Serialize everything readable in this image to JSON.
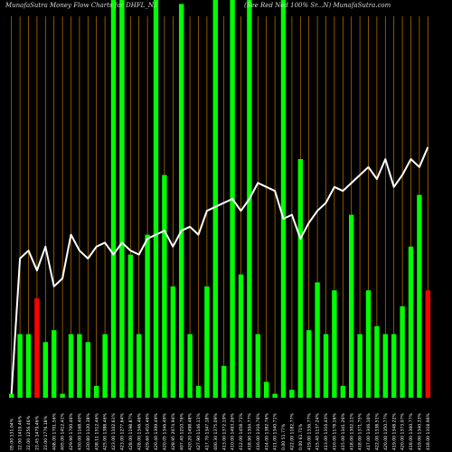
{
  "header": {
    "left": "MunafaSutra  Money Flow  Charts for DHFL_N1",
    "right": "(See Red Ned 100% Sr...N) MunafaSutra.com"
  },
  "colors": {
    "background": "#000000",
    "up": "#00ff00",
    "down": "#ff0000",
    "grid": "#c87800",
    "line": "#ffffff"
  },
  "chart_data": {
    "type": "bar",
    "title": "MunafaSutra  Money Flow  Charts for DHFL_N1",
    "subtitle": "(See Red Ned 100% Sr...N) MunafaSutra.com",
    "ylim": [
      0,
      100
    ],
    "grid": true,
    "categories": [
      "05.00 131.04%",
      "22.00 1419.46%",
      "22.00 1256.46%",
      "23.45 1479.46%",
      "23.00 1776.18%",
      "408.00 1701.56%",
      "405.00 1412.41%",
      "429.90 1700.46%",
      "430.00 1168.40%",
      "430.80 1120.38%",
      "438.11 1512.46%",
      "425.00 1388.46%",
      "423.00 1102.61%",
      "423.00 1277.64%",
      "428.00 1198.87%",
      "428.00 1346.46%",
      "429.60 1410.46%",
      "420.40 1309.49%",
      "420.05 1346.49%",
      "428.95 2074.94%",
      "407.40 1210.76%",
      "420.20 1498.48%",
      "427.90 1146.11%",
      "417.70 1347.18%",
      "400.30 1375.09%",
      "413.00 1372.19%",
      "410.00 1493.26%",
      "412.00 1458.71%",
      "418.90 1304.77%",
      "416.00 1316.76%",
      "414.00 1382.76%",
      "411.00 1340.71%",
      "0.00 51.77%",
      "422.00 1182.77%",
      "0.00 61.71%",
      "419.00 1336.77%",
      "415.40 1137.24%",
      "413.00 1316.43%",
      "410.00 1178.16%",
      "415.00 1341.26%",
      "418.00 1302.11%",
      "418.00 1371.75%",
      "417.00 1346.16%",
      "422.00 1338.51%",
      "420.00 1350.77%",
      "419.00 1348.22%",
      "420.00 1373.07%",
      "418.00 1360.77%",
      "419.00 1340.33%",
      "418.00 1318.96%"
    ],
    "series": [
      {
        "values": [
          1,
          16,
          16,
          25,
          14,
          17,
          1,
          16,
          16,
          14,
          3,
          16,
          100,
          100,
          36,
          16,
          41,
          100,
          56,
          28,
          99,
          16,
          3,
          28,
          100,
          8,
          100,
          31,
          100,
          16,
          4,
          1,
          100,
          2,
          60,
          17,
          29,
          16,
          27,
          3,
          46,
          16,
          27,
          18,
          16,
          16,
          23,
          38,
          51,
          27
        ],
        "directions": [
          "up",
          "up",
          "up",
          "down",
          "up",
          "up",
          "up",
          "up",
          "up",
          "up",
          "up",
          "up",
          "up",
          "up",
          "up",
          "up",
          "up",
          "up",
          "up",
          "up",
          "up",
          "up",
          "up",
          "up",
          "up",
          "up",
          "up",
          "up",
          "up",
          "up",
          "up",
          "up",
          "up",
          "up",
          "up",
          "up",
          "up",
          "up",
          "up",
          "up",
          "up",
          "up",
          "up",
          "up",
          "up",
          "up",
          "up",
          "up",
          "up",
          "down"
        ]
      }
    ],
    "line_values": [
      1,
      35,
      37,
      32,
      38,
      28,
      30,
      41,
      37,
      35,
      38,
      39,
      36,
      39,
      37,
      36,
      40,
      41,
      42,
      38,
      42,
      43,
      41,
      47,
      48,
      49,
      50,
      47,
      50,
      54,
      53,
      52,
      45,
      46,
      40,
      44,
      47,
      49,
      53,
      52,
      54,
      56,
      58,
      55,
      60,
      53,
      56,
      60,
      58,
      63
    ]
  }
}
